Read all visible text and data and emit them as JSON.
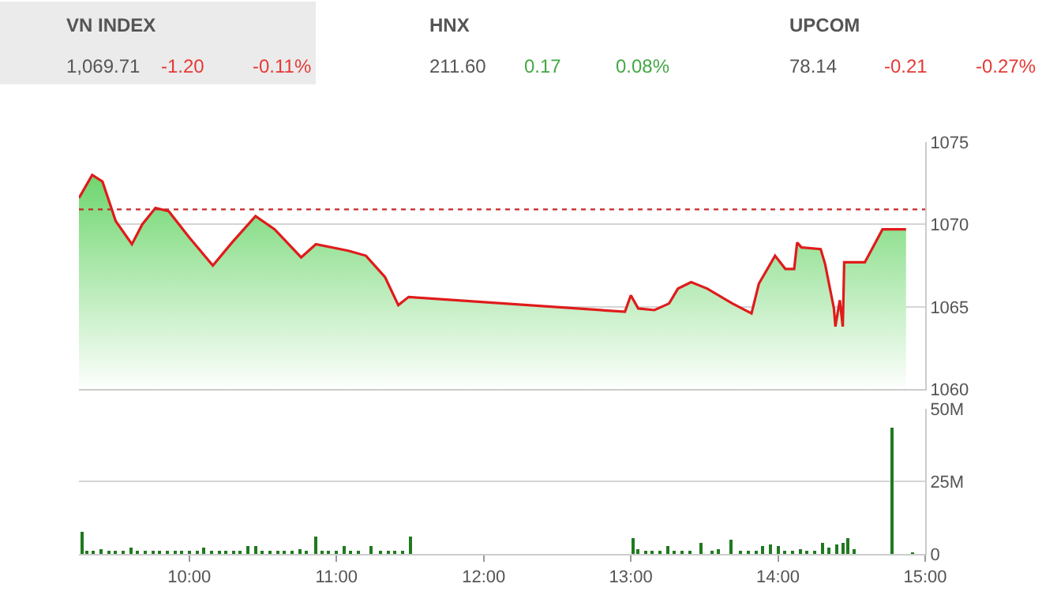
{
  "chart_data": [
    {
      "type": "other",
      "annotations": [
        "VN INDEX",
        "1,069.71",
        "-1.20",
        "-0.11%",
        "HNX",
        "211.60",
        "0.17",
        "0.08%",
        "UPCOM",
        "78.14",
        "-0.21",
        "-0.27%"
      ],
      "colors": [
        "#555555",
        "#555555",
        "#e53935",
        "#e53935",
        "#555555",
        "#555555",
        "#43a843",
        "#43a843",
        "#555555",
        "#555555",
        "#e53935",
        "#e53935"
      ]
    },
    {
      "type": "area",
      "x": [
        9.25,
        9.34,
        9.41,
        9.47,
        9.5,
        9.61,
        9.68,
        9.77,
        9.86,
        10.0,
        10.16,
        10.29,
        10.45,
        10.58,
        10.76,
        10.86,
        11.08,
        11.2,
        11.33,
        11.42,
        11.49,
        12.96,
        13.0,
        13.05,
        13.16,
        13.26,
        13.32,
        13.41,
        13.52,
        13.69,
        13.82,
        13.87,
        13.98,
        14.05,
        14.11,
        14.13,
        14.16,
        14.29,
        14.32,
        14.38,
        14.39,
        14.42,
        14.44,
        14.45,
        14.59,
        14.71,
        14.87
      ],
      "series": [
        {
          "color": "#e01b1b",
          "values": [
            1071.6,
            1073.0,
            1072.6,
            1071.0,
            1070.2,
            1068.8,
            1070.0,
            1071.0,
            1070.8,
            1069.2,
            1067.5,
            1068.9,
            1070.5,
            1069.7,
            1068.0,
            1068.8,
            1068.4,
            1068.1,
            1066.8,
            1065.1,
            1065.6,
            1064.7,
            1065.7,
            1064.9,
            1064.8,
            1065.2,
            1066.1,
            1066.5,
            1066.1,
            1065.2,
            1064.6,
            1066.4,
            1068.1,
            1067.3,
            1067.3,
            1068.9,
            1068.6,
            1068.5,
            1067.6,
            1064.9,
            1063.8,
            1065.4,
            1063.8,
            1067.7,
            1067.7,
            1069.7,
            1069.7
          ]
        }
      ],
      "xlim": [
        9.25,
        15.0
      ],
      "ylim": [
        1060,
        1075
      ],
      "yticks": [
        1060,
        1065,
        1070,
        1075
      ],
      "ref_lines": [
        {
          "axis": "y",
          "value": 1070.91,
          "color": "#c62828",
          "line_style": "dotted"
        }
      ],
      "grid": "y",
      "legend": false,
      "tick_labels": "y"
    },
    {
      "type": "bar",
      "x": [
        9.27,
        9.3,
        9.35,
        9.4,
        9.45,
        9.5,
        9.55,
        9.6,
        9.65,
        9.7,
        9.75,
        9.8,
        9.85,
        9.9,
        9.95,
        10.0,
        10.05,
        10.1,
        10.15,
        10.2,
        10.25,
        10.3,
        10.35,
        10.4,
        10.45,
        10.5,
        10.55,
        10.6,
        10.65,
        10.7,
        10.75,
        10.8,
        10.86,
        10.9,
        10.95,
        11.0,
        11.05,
        11.1,
        11.15,
        11.23,
        11.3,
        11.35,
        11.4,
        11.45,
        11.5,
        13.02,
        13.05,
        13.1,
        13.15,
        13.2,
        13.25,
        13.3,
        13.35,
        13.4,
        13.48,
        13.55,
        13.6,
        13.68,
        13.75,
        13.8,
        13.85,
        13.9,
        13.95,
        14.0,
        14.05,
        14.1,
        14.15,
        14.2,
        14.25,
        14.3,
        14.35,
        14.4,
        14.44,
        14.48,
        14.52,
        14.77,
        14.92
      ],
      "series": [
        {
          "color": "#1f7a1f",
          "values": [
            7.6,
            1.2,
            1.0,
            1.3,
            0.9,
            1.1,
            0.8,
            2.0,
            1.0,
            0.9,
            1.2,
            0.8,
            0.9,
            1.0,
            0.8,
            1.1,
            0.7,
            2.2,
            0.9,
            0.8,
            1.0,
            1.2,
            0.9,
            2.6,
            2.4,
            0.9,
            0.8,
            1.0,
            0.7,
            0.9,
            1.4,
            0.8,
            6.1,
            1.1,
            1.2,
            0.9,
            2.8,
            0.8,
            1.0,
            2.6,
            0.8,
            0.9,
            1.0,
            0.8,
            6.1,
            5.6,
            1.4,
            1.1,
            0.9,
            1.0,
            2.4,
            0.9,
            1.1,
            1.2,
            3.5,
            1.0,
            1.3,
            4.8,
            1.0,
            0.9,
            1.2,
            2.8,
            3.3,
            2.5,
            1.1,
            1.2,
            1.3,
            1.0,
            1.2,
            3.7,
            2.2,
            3.0,
            4.0,
            5.6,
            1.5,
            43.5,
            0.4
          ]
        }
      ],
      "xlim": [
        9.25,
        15.0
      ],
      "xticks": [
        {
          "value": 10,
          "label": "10:00"
        },
        {
          "value": 11,
          "label": "11:00"
        },
        {
          "value": 12,
          "label": "12:00"
        },
        {
          "value": 13,
          "label": "13:00"
        },
        {
          "value": 14,
          "label": "14:00"
        },
        {
          "value": 15,
          "label": "15:00"
        }
      ],
      "ylim": [
        0,
        50
      ],
      "yticks": [
        0,
        {
          "value": 25,
          "label": "25M"
        },
        {
          "value": 50,
          "label": "50M"
        }
      ],
      "grid": "y",
      "legend": false
    }
  ]
}
